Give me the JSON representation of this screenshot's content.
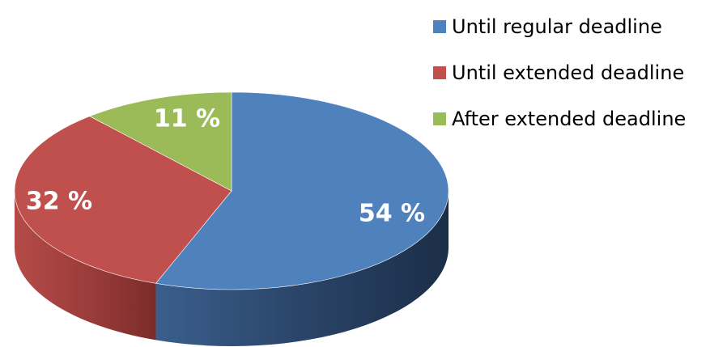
{
  "chart_data": {
    "type": "pie",
    "style": "3d",
    "title": "",
    "slices": [
      {
        "label": "Until regular deadline",
        "value": 54,
        "value_label": "54 %",
        "color": "#4F81BD"
      },
      {
        "label": "Until extended deadline",
        "value": 32,
        "value_label": "32 %",
        "color": "#C0504D"
      },
      {
        "label": "After extended deadline",
        "value": 11,
        "value_label": "11 %",
        "color": "#9BBB59"
      }
    ],
    "legend_position": "top-right"
  }
}
